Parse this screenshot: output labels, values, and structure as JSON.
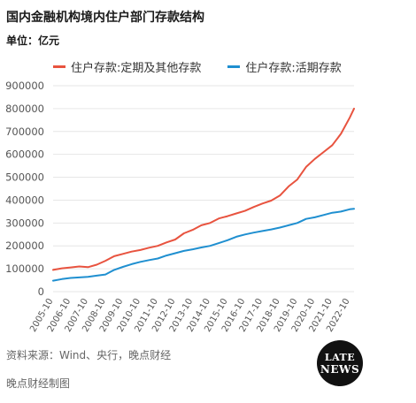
{
  "header": {
    "title": "国内金融机构境内住户部门存款结构",
    "unit": "单位：亿元"
  },
  "footer": {
    "source": "资料来源：Wind、央行，晚点财经",
    "maker": "晚点财经制图",
    "logo_line1": "LATE",
    "logo_line2": "NEWS"
  },
  "colors": {
    "series_time": "#e8533f",
    "series_demand": "#1f8fd0",
    "grid": "#e6e6e6"
  },
  "chart_data": {
    "type": "line",
    "title": "国内金融机构境内住户部门存款结构",
    "ylabel": "单位：亿元",
    "ylim": [
      0,
      900000
    ],
    "yticks": [
      0,
      100000,
      200000,
      300000,
      400000,
      500000,
      600000,
      700000,
      800000,
      900000
    ],
    "grid": true,
    "legend_position": "top",
    "x_tick_labels": [
      "2005-10",
      "2006-10",
      "2007-10",
      "2008-10",
      "2009-10",
      "2010-10",
      "2011-10",
      "2012-10",
      "2013-10",
      "2014-10",
      "2015-10",
      "2016-10",
      "2017-10",
      "2018-10",
      "2019-10",
      "2020-10",
      "2021-10",
      "2022-10"
    ],
    "x": [
      "2005-10",
      "2006-04",
      "2006-10",
      "2007-04",
      "2007-10",
      "2008-04",
      "2008-10",
      "2009-04",
      "2009-10",
      "2010-04",
      "2010-10",
      "2011-04",
      "2011-10",
      "2012-04",
      "2012-10",
      "2013-04",
      "2013-10",
      "2014-04",
      "2014-10",
      "2015-04",
      "2015-10",
      "2016-04",
      "2016-10",
      "2017-04",
      "2017-10",
      "2018-04",
      "2018-10",
      "2019-04",
      "2019-10",
      "2020-04",
      "2020-10",
      "2021-04",
      "2021-10",
      "2022-04",
      "2022-10",
      "2023-01"
    ],
    "series": [
      {
        "name": "住户存款:定期及其他存款",
        "values": [
          95000,
          102000,
          106000,
          110000,
          107000,
          118000,
          135000,
          155000,
          165000,
          175000,
          182000,
          192000,
          200000,
          215000,
          228000,
          255000,
          270000,
          290000,
          300000,
          320000,
          330000,
          342000,
          353000,
          370000,
          385000,
          398000,
          420000,
          460000,
          490000,
          545000,
          580000,
          610000,
          640000,
          690000,
          760000,
          800000
        ]
      },
      {
        "name": "住户存款:活期存款",
        "values": [
          48000,
          55000,
          60000,
          62000,
          65000,
          70000,
          75000,
          95000,
          108000,
          120000,
          130000,
          138000,
          145000,
          158000,
          168000,
          178000,
          185000,
          193000,
          200000,
          212000,
          225000,
          240000,
          250000,
          258000,
          265000,
          272000,
          280000,
          290000,
          300000,
          318000,
          325000,
          335000,
          345000,
          350000,
          360000,
          362000
        ]
      }
    ]
  }
}
